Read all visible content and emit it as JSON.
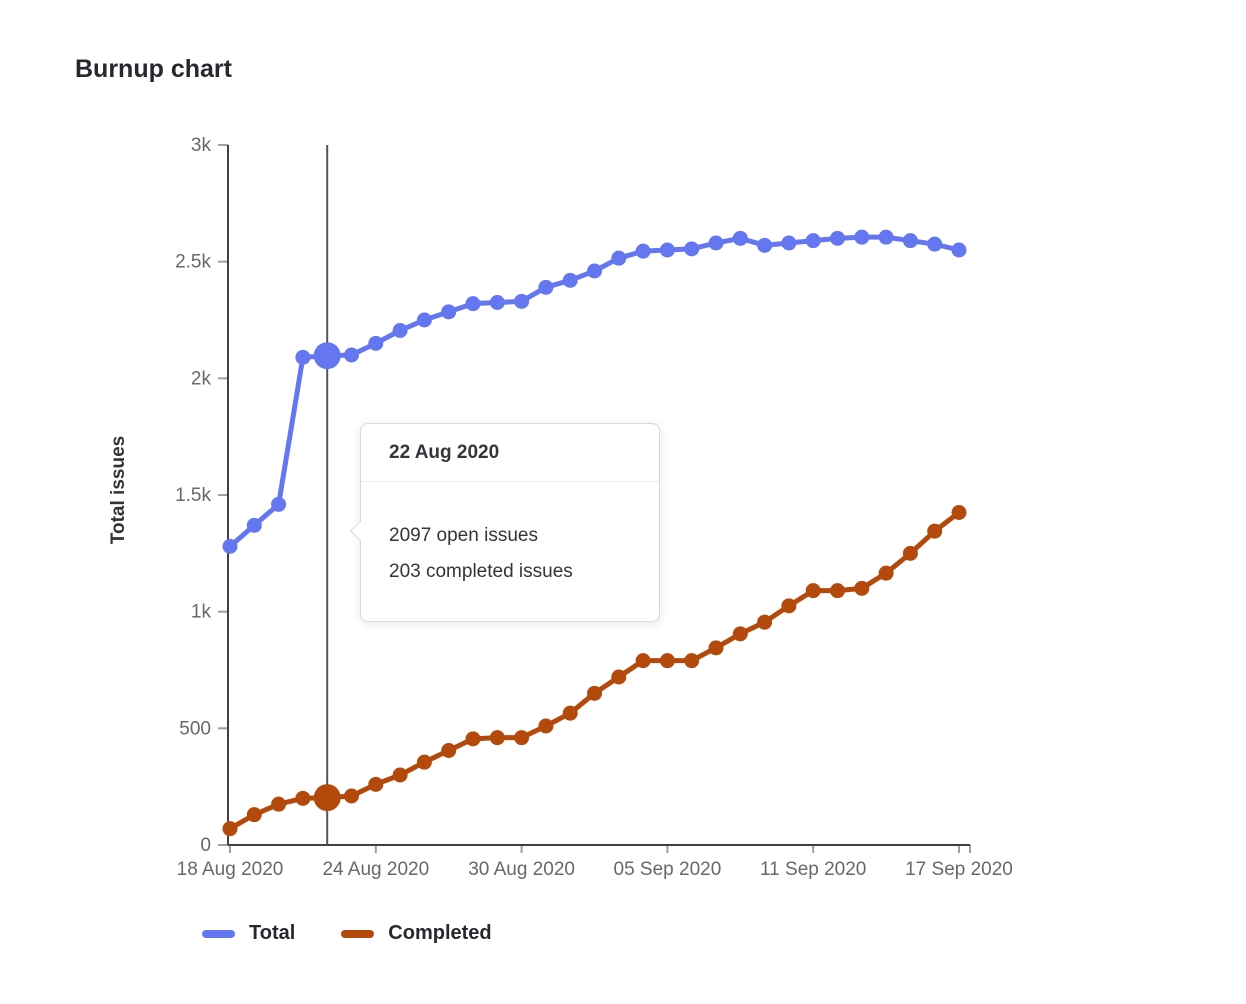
{
  "title": "Burnup chart",
  "tooltip": {
    "title": "22 Aug 2020",
    "lines": [
      "2097 open issues",
      "203 completed issues"
    ]
  },
  "legend": [
    {
      "label": "Total",
      "color": "#6476f0"
    },
    {
      "label": "Completed",
      "color": "#b4490c"
    }
  ],
  "colors": {
    "axis_line": "#404040",
    "tick": "#9e9e9e",
    "axis_text": "#68676c",
    "hover_line": "#555555"
  },
  "chart_data": {
    "type": "line",
    "title": "Burnup chart",
    "xlabel": "",
    "ylabel": "Total issues",
    "ylim": [
      0,
      3000
    ],
    "grid": false,
    "legend_position": "bottom-left",
    "x": [
      "2020-08-18",
      "2020-08-19",
      "2020-08-20",
      "2020-08-21",
      "2020-08-22",
      "2020-08-23",
      "2020-08-24",
      "2020-08-25",
      "2020-08-26",
      "2020-08-27",
      "2020-08-28",
      "2020-08-29",
      "2020-08-30",
      "2020-08-31",
      "2020-09-01",
      "2020-09-02",
      "2020-09-03",
      "2020-09-04",
      "2020-09-05",
      "2020-09-06",
      "2020-09-07",
      "2020-09-08",
      "2020-09-09",
      "2020-09-10",
      "2020-09-11",
      "2020-09-12",
      "2020-09-13",
      "2020-09-14",
      "2020-09-15",
      "2020-09-16",
      "2020-09-17"
    ],
    "x_tick_labels": [
      "18 Aug 2020",
      "24 Aug 2020",
      "30 Aug 2020",
      "05 Sep 2020",
      "11 Sep 2020",
      "17 Sep 2020"
    ],
    "x_tick_indices": [
      0,
      6,
      12,
      18,
      24,
      30
    ],
    "y_ticks": [
      {
        "label": "0",
        "value": 0
      },
      {
        "label": "500",
        "value": 500
      },
      {
        "label": "1k",
        "value": 1000
      },
      {
        "label": "1.5k",
        "value": 1500
      },
      {
        "label": "2k",
        "value": 2000
      },
      {
        "label": "2.5k",
        "value": 2500
      },
      {
        "label": "3k",
        "value": 3000
      }
    ],
    "series": [
      {
        "name": "Total",
        "color": "#6476f0",
        "values": [
          1280,
          1370,
          1460,
          2090,
          2097,
          2100,
          2150,
          2205,
          2250,
          2285,
          2320,
          2325,
          2330,
          2390,
          2420,
          2460,
          2515,
          2545,
          2550,
          2555,
          2580,
          2600,
          2570,
          2580,
          2590,
          2600,
          2605,
          2605,
          2590,
          2575,
          2550
        ]
      },
      {
        "name": "Completed",
        "color": "#b4490c",
        "values": [
          70,
          130,
          175,
          200,
          203,
          210,
          260,
          300,
          355,
          405,
          455,
          460,
          460,
          510,
          565,
          650,
          720,
          790,
          790,
          790,
          845,
          905,
          955,
          1025,
          1090,
          1090,
          1100,
          1165,
          1250,
          1345,
          1425
        ]
      }
    ],
    "highlight": {
      "index": 4,
      "date_label": "22 Aug 2020"
    }
  }
}
